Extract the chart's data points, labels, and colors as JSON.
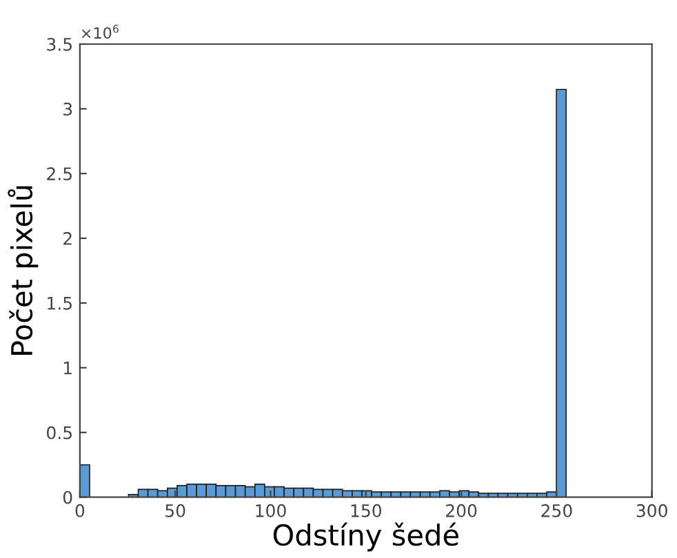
{
  "chart_data": {
    "type": "histogram",
    "xlabel": "Odstíny šedé",
    "ylabel": "Počet pixelů",
    "annotations": [
      "×10$^{6}$"
    ],
    "bins": [
      0,
      5.1,
      10.2,
      15.3,
      20.4,
      25.5,
      30.6,
      35.7,
      40.8,
      45.9,
      51,
      56.1,
      61.2,
      66.3,
      71.4,
      76.5,
      81.6,
      86.7,
      91.8,
      96.9,
      102,
      107.1,
      112.2,
      117.3,
      122.4,
      127.5,
      132.6,
      137.7,
      142.8,
      147.9,
      153,
      158.1,
      163.2,
      168.3,
      173.4,
      178.5,
      183.6,
      188.7,
      193.8,
      198.9,
      204,
      209.1,
      214.2,
      219.3,
      224.4,
      229.5,
      234.6,
      239.7,
      244.8,
      249.9,
      255
    ],
    "values": [
      0.25,
      0,
      0,
      0,
      0,
      0.02,
      0.06,
      0.06,
      0.05,
      0.07,
      0.09,
      0.1,
      0.1,
      0.1,
      0.09,
      0.09,
      0.09,
      0.08,
      0.1,
      0.08,
      0.08,
      0.07,
      0.07,
      0.07,
      0.06,
      0.06,
      0.06,
      0.05,
      0.05,
      0.05,
      0.04,
      0.04,
      0.04,
      0.04,
      0.04,
      0.04,
      0.04,
      0.05,
      0.04,
      0.05,
      0.04,
      0.03,
      0.03,
      0.03,
      0.03,
      0.03,
      0.03,
      0.03,
      0.04,
      3.15
    ],
    "color": "#5a9bd5",
    "xlim": [
      0,
      300
    ],
    "xticks": [
      0,
      50,
      100,
      150,
      200,
      250,
      300
    ],
    "ylim": [
      0,
      3.5
    ],
    "yticks": [
      0,
      0.5,
      1,
      1.5,
      2,
      2.5,
      3,
      3.5
    ],
    "grid": false
  }
}
